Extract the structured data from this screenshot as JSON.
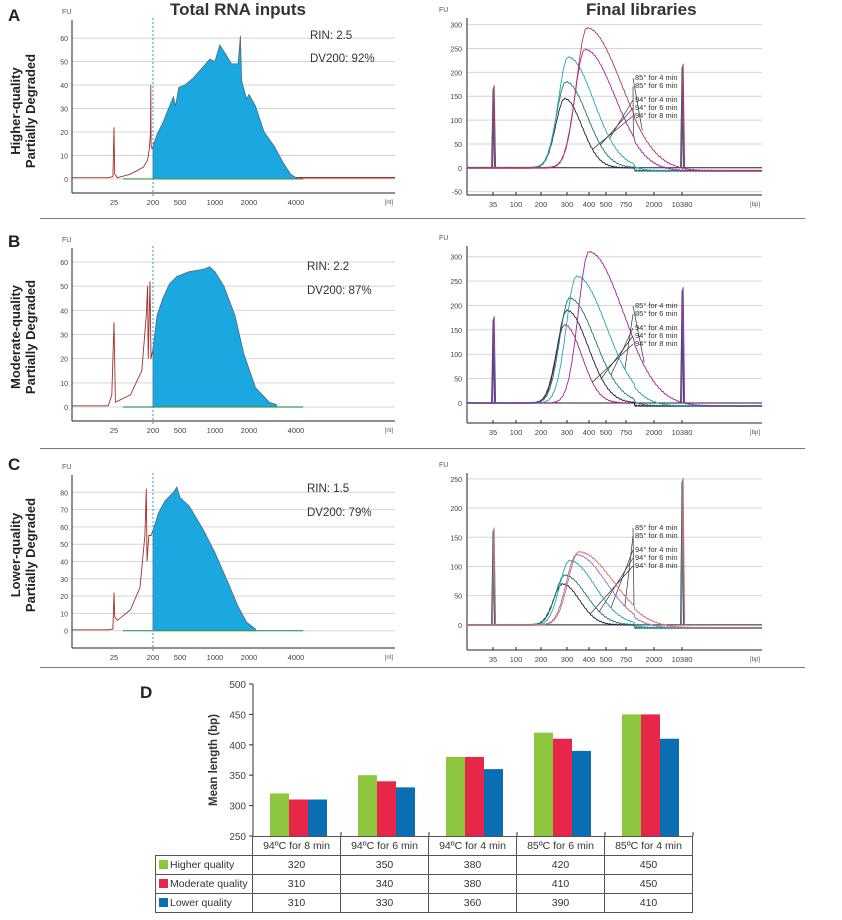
{
  "columns": {
    "left_title": "Total RNA inputs",
    "right_title": "Final libraries"
  },
  "panels": [
    {
      "letter": "A",
      "row_label_1": "Higher-quality",
      "row_label_2": "Partially Degraded",
      "rin": "RIN: 2.5",
      "dv200": "DV200: 92%"
    },
    {
      "letter": "B",
      "row_label_1": "Moderate-quality",
      "row_label_2": "Partially Degraded",
      "rin": "RIN: 2.2",
      "dv200": "DV200: 87%"
    },
    {
      "letter": "C",
      "row_label_1": "Lower-quality",
      "row_label_2": "Partially Degraded",
      "rin": "RIN: 1.5",
      "dv200": "DV200: 79%"
    }
  ],
  "bar_letter": "D",
  "colors": {
    "fill": "#1ba7e0",
    "trace": "#a3302a",
    "baseline": "#3a9a50",
    "green": "#8dc63f",
    "red": "#e8264a",
    "blue": "#0a6eb4"
  },
  "chart_data": [
    {
      "type": "area",
      "panel": "A",
      "ylabel": "FU",
      "xunit": "[nt]",
      "ylim": [
        -6,
        67.7
      ],
      "yticks": [
        0,
        10,
        20,
        30,
        40,
        50,
        60
      ],
      "xticks": [
        25,
        200,
        500,
        1000,
        2000,
        4000
      ],
      "dv200_cutoff": 200,
      "trace": [
        [
          5,
          0.5
        ],
        [
          20,
          0.5
        ],
        [
          24,
          1
        ],
        [
          25,
          22
        ],
        [
          26,
          2
        ],
        [
          30,
          0.5
        ],
        [
          60,
          2
        ],
        [
          120,
          5
        ],
        [
          150,
          8
        ],
        [
          165,
          13
        ],
        [
          175,
          20
        ],
        [
          178,
          40
        ],
        [
          181,
          14
        ],
        [
          190,
          13
        ],
        [
          200,
          14
        ],
        [
          230,
          19
        ],
        [
          280,
          24
        ],
        [
          350,
          31
        ],
        [
          400,
          35
        ],
        [
          430,
          31
        ],
        [
          480,
          39
        ],
        [
          550,
          40
        ],
        [
          650,
          43
        ],
        [
          800,
          48
        ],
        [
          900,
          51
        ],
        [
          1000,
          50
        ],
        [
          1100,
          57
        ],
        [
          1250,
          53
        ],
        [
          1400,
          49
        ],
        [
          1600,
          49
        ],
        [
          1680,
          61
        ],
        [
          1720,
          42
        ],
        [
          1900,
          34
        ],
        [
          2000,
          36
        ],
        [
          2200,
          31
        ],
        [
          2500,
          20
        ],
        [
          2900,
          14
        ],
        [
          3300,
          7
        ],
        [
          3700,
          2
        ],
        [
          4000,
          0.5
        ],
        [
          20000,
          0.5
        ]
      ]
    },
    {
      "type": "area",
      "panel": "B",
      "ylabel": "FU",
      "xunit": "[nt]",
      "ylim": [
        -5.8,
        65.8
      ],
      "yticks": [
        0,
        10,
        20,
        30,
        40,
        50,
        60
      ],
      "xticks": [
        25,
        200,
        500,
        1000,
        2000,
        4000
      ],
      "dv200_cutoff": 200,
      "trace": [
        [
          5,
          0.5
        ],
        [
          20,
          0.5
        ],
        [
          23,
          5
        ],
        [
          25,
          35
        ],
        [
          27,
          2
        ],
        [
          60,
          5
        ],
        [
          110,
          15
        ],
        [
          140,
          38
        ],
        [
          150,
          50
        ],
        [
          155,
          20
        ],
        [
          170,
          52
        ],
        [
          180,
          20
        ],
        [
          200,
          24
        ],
        [
          230,
          38
        ],
        [
          280,
          45
        ],
        [
          350,
          51
        ],
        [
          450,
          54
        ],
        [
          600,
          56
        ],
        [
          800,
          57
        ],
        [
          900,
          58
        ],
        [
          1000,
          56
        ],
        [
          1200,
          50
        ],
        [
          1500,
          38
        ],
        [
          1800,
          22
        ],
        [
          2200,
          8
        ],
        [
          2700,
          2
        ],
        [
          3000,
          1
        ],
        [
          20000,
          1
        ]
      ]
    },
    {
      "type": "area",
      "panel": "C",
      "ylabel": "FU",
      "xunit": "[nt]",
      "ylim": [
        -10,
        90
      ],
      "yticks": [
        0,
        10,
        20,
        30,
        40,
        50,
        60,
        70,
        80
      ],
      "xticks": [
        25,
        200,
        500,
        1000,
        2000,
        4000
      ],
      "dv200_cutoff": 200,
      "trace": [
        [
          5,
          0.5
        ],
        [
          20,
          0.5
        ],
        [
          24,
          1
        ],
        [
          25,
          22
        ],
        [
          26,
          8
        ],
        [
          30,
          6
        ],
        [
          60,
          12
        ],
        [
          100,
          25
        ],
        [
          130,
          55
        ],
        [
          140,
          82
        ],
        [
          145,
          40
        ],
        [
          160,
          55
        ],
        [
          180,
          55
        ],
        [
          200,
          58
        ],
        [
          240,
          68
        ],
        [
          300,
          75
        ],
        [
          400,
          80
        ],
        [
          450,
          83
        ],
        [
          500,
          77
        ],
        [
          600,
          72
        ],
        [
          800,
          58
        ],
        [
          1000,
          45
        ],
        [
          1300,
          28
        ],
        [
          1600,
          14
        ],
        [
          1900,
          5
        ],
        [
          2200,
          1
        ],
        [
          20000,
          1
        ]
      ]
    },
    {
      "type": "line",
      "panel": "A",
      "ylabel": "FU",
      "xunit": "[bp]",
      "ylim": [
        -57,
        314
      ],
      "yticks": [
        -50,
        0,
        50,
        100,
        150,
        200,
        250,
        300
      ],
      "xticks": [
        35,
        100,
        200,
        300,
        400,
        500,
        750,
        2000,
        10380
      ],
      "markers": [
        {
          "bp": 35,
          "fu": 165
        },
        {
          "bp": 10380,
          "fu": 210
        }
      ],
      "series": [
        {
          "name": "94° for 8 min",
          "peak_bp": 290,
          "peak_fu": 145,
          "color": "#1c1c48"
        },
        {
          "name": "94° for 6 min",
          "peak_bp": 295,
          "peak_fu": 180,
          "color": "#1a7a64"
        },
        {
          "name": "94° for 4 min",
          "peak_bp": 305,
          "peak_fu": 232,
          "color": "#22a5b5"
        },
        {
          "name": "85° for 6 min",
          "peak_bp": 380,
          "peak_fu": 248,
          "color": "#a3209f"
        },
        {
          "name": "85° for 4 min",
          "peak_bp": 390,
          "peak_fu": 293,
          "color": "#b03a5a"
        }
      ]
    },
    {
      "type": "line",
      "panel": "B",
      "ylabel": "FU",
      "xunit": "[bp]",
      "ylim": [
        -41,
        322
      ],
      "yticks": [
        0,
        50,
        100,
        150,
        200,
        250,
        300
      ],
      "xticks": [
        35,
        100,
        200,
        300,
        400,
        500,
        750,
        2000,
        10380
      ],
      "markers": [
        {
          "bp": 35,
          "fu": 170
        },
        {
          "bp": 10380,
          "fu": 230
        }
      ],
      "series": [
        {
          "name": "94° for 8 min",
          "peak_bp": 290,
          "peak_fu": 160,
          "color": "#b0206a"
        },
        {
          "name": "94° for 6 min",
          "peak_bp": 300,
          "peak_fu": 190,
          "color": "#1c1c48"
        },
        {
          "name": "94° for 4 min",
          "peak_bp": 310,
          "peak_fu": 215,
          "color": "#1a7a64"
        },
        {
          "name": "85° for 6 min",
          "peak_bp": 340,
          "peak_fu": 260,
          "color": "#22a5b5"
        },
        {
          "name": "85° for 4 min",
          "peak_bp": 400,
          "peak_fu": 310,
          "color": "#a3209f"
        }
      ]
    },
    {
      "type": "line",
      "panel": "C",
      "ylabel": "FU",
      "xunit": "[bp]",
      "ylim": [
        -43,
        260
      ],
      "yticks": [
        0,
        50,
        100,
        150,
        200,
        250
      ],
      "xticks": [
        35,
        100,
        200,
        300,
        400,
        500,
        750,
        2000,
        10380
      ],
      "markers": [
        {
          "bp": 35,
          "fu": 160
        },
        {
          "bp": 10380,
          "fu": 245
        }
      ],
      "series": [
        {
          "name": "94° for 8 min",
          "peak_bp": 280,
          "peak_fu": 70,
          "color": "#1c1c48"
        },
        {
          "name": "94° for 6 min",
          "peak_bp": 290,
          "peak_fu": 85,
          "color": "#1a7a64"
        },
        {
          "name": "94° for 4 min",
          "peak_bp": 310,
          "peak_fu": 110,
          "color": "#22a5b5"
        },
        {
          "name": "85° for 6 min",
          "peak_bp": 340,
          "peak_fu": 120,
          "color": "#9a70b0"
        },
        {
          "name": "85° for 4 min",
          "peak_bp": 350,
          "peak_fu": 125,
          "color": "#d07060"
        }
      ]
    },
    {
      "type": "bar",
      "panel": "D",
      "ylabel": "Mean length (bp)",
      "ylim": [
        250,
        500
      ],
      "yticks": [
        250,
        300,
        350,
        400,
        450,
        500
      ],
      "categories": [
        "94ºC for 8 min",
        "94ºC for 6 min",
        "94ºC for 4 min",
        "85ºC for 6 min",
        "85ºC for 4 min"
      ],
      "series": [
        {
          "name": "Higher quality",
          "values": [
            320,
            350,
            380,
            420,
            450
          ],
          "color": "#8dc63f"
        },
        {
          "name": "Moderate quality",
          "values": [
            310,
            340,
            380,
            410,
            450
          ],
          "color": "#e8264a"
        },
        {
          "name": "Lower quality",
          "values": [
            310,
            330,
            360,
            390,
            410
          ],
          "color": "#0a6eb4"
        }
      ]
    }
  ]
}
